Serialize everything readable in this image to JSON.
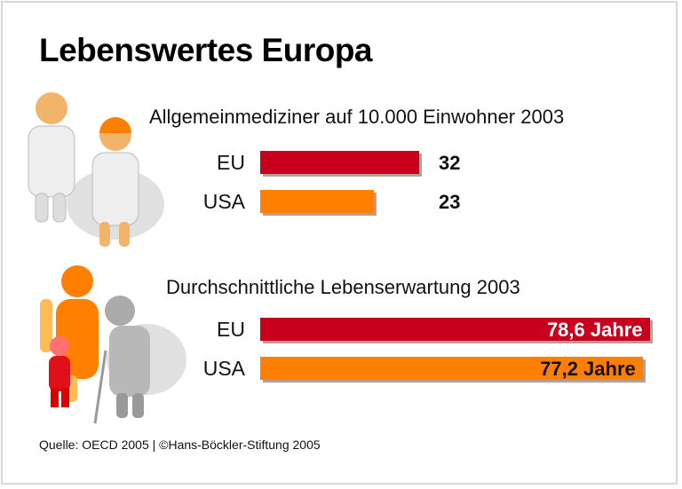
{
  "title": "Lebenswertes Europa",
  "colors": {
    "eu": "#c8001e",
    "usa": "#ff8000"
  },
  "chart_data": [
    {
      "type": "bar",
      "orientation": "horizontal",
      "title": "Allgemeinmediziner auf 10.000 Einwohner 2003",
      "categories": [
        "EU",
        "USA"
      ],
      "values": [
        32,
        23
      ],
      "labels": [
        "32",
        "23"
      ]
    },
    {
      "type": "bar",
      "orientation": "horizontal",
      "title": "Durchschnittliche Lebenserwartung 2003",
      "categories": [
        "EU",
        "USA"
      ],
      "values": [
        78.6,
        77.2
      ],
      "labels": [
        "78,6 Jahre",
        "77,2 Jahre"
      ]
    }
  ],
  "icons": [
    "doctors-figure-icon",
    "family-figure-icon"
  ],
  "source": "Quelle: OECD 2005 | ©Hans-Böckler-Stiftung 2005"
}
